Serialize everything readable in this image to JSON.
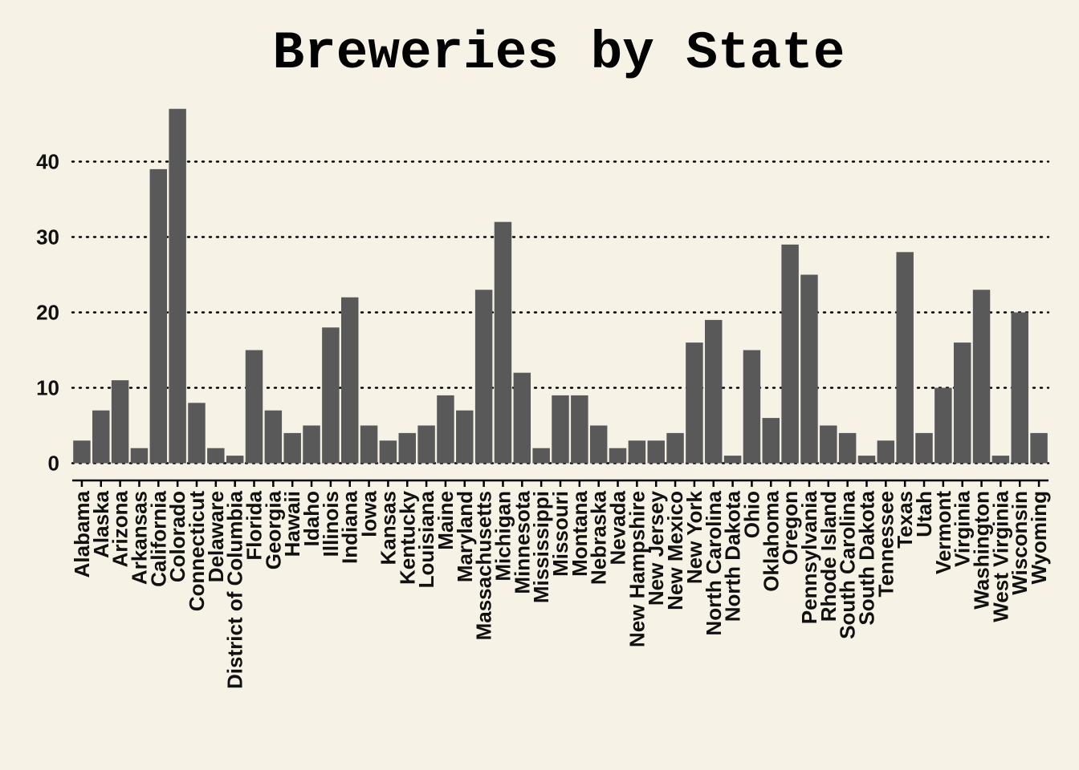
{
  "chart_data": {
    "type": "bar",
    "title": "Breweries by State",
    "xlabel": "",
    "ylabel": "",
    "ylim": [
      0,
      48
    ],
    "yticks": [
      0,
      10,
      20,
      30,
      40
    ],
    "grid": "horizontal-dotted",
    "bar_color": "#595959",
    "background": "#f7f2e6",
    "categories": [
      "Alabama",
      "Alaska",
      "Arizona",
      "Arkansas",
      "California",
      "Colorado",
      "Connecticut",
      "Delaware",
      "District of Columbia",
      "Florida",
      "Georgia",
      "Hawaii",
      "Idaho",
      "Illinois",
      "Indiana",
      "Iowa",
      "Kansas",
      "Kentucky",
      "Louisiana",
      "Maine",
      "Maryland",
      "Massachusetts",
      "Michigan",
      "Minnesota",
      "Mississippi",
      "Missouri",
      "Montana",
      "Nebraska",
      "Nevada",
      "New Hampshire",
      "New Jersey",
      "New Mexico",
      "New York",
      "North Carolina",
      "North Dakota",
      "Ohio",
      "Oklahoma",
      "Oregon",
      "Pennsylvania",
      "Rhode Island",
      "South Carolina",
      "South Dakota",
      "Tennessee",
      "Texas",
      "Utah",
      "Vermont",
      "Virginia",
      "Washington",
      "West Virginia",
      "Wisconsin",
      "Wyoming"
    ],
    "values": [
      3,
      7,
      11,
      2,
      39,
      47,
      8,
      2,
      1,
      15,
      7,
      4,
      5,
      18,
      22,
      5,
      3,
      4,
      5,
      9,
      7,
      23,
      32,
      12,
      2,
      9,
      9,
      5,
      2,
      3,
      3,
      4,
      16,
      19,
      1,
      15,
      6,
      29,
      25,
      5,
      4,
      1,
      3,
      28,
      4,
      10,
      16,
      23,
      1,
      20,
      4
    ]
  }
}
